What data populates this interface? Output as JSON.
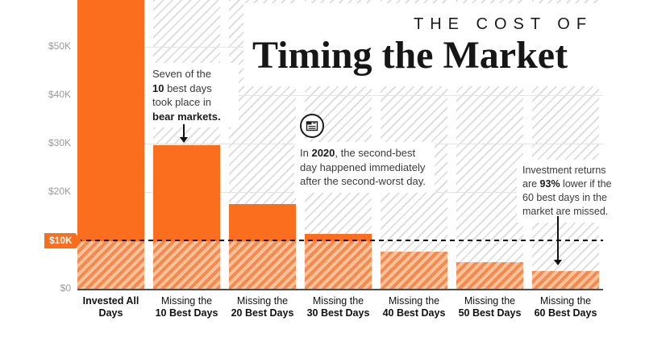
{
  "title": {
    "kicker": "THE COST OF",
    "main": "Timing the Market"
  },
  "colors": {
    "accent_orange": "#FB6E1E",
    "hatch_orange_stripe": "#F58A50",
    "hatch_orange_bg": "#FCC29A",
    "hatch_gray_stripe": "#DFDFDF",
    "axis_label_gray": "#9B9B9B",
    "text_dark": "#1C1C1C"
  },
  "annotations": {
    "bear": {
      "p1": "Seven of the",
      "p2": "10",
      "p3": " best days",
      "p4": "took place in",
      "p5": "bear markets."
    },
    "calendar": {
      "p1": "In ",
      "p2": "2020",
      "p3": ", the second-best",
      "p4": "day happened immediately",
      "p5": "after the second-worst day."
    },
    "returns": {
      "p1": "Investment returns",
      "p2": "are ",
      "p3": "93%",
      "p4": " lower if the",
      "p5": "60 best days in the",
      "p6": "market are missed."
    }
  },
  "chart_data": {
    "type": "bar",
    "title": "The Cost of Timing the Market",
    "categories": [
      {
        "lines": [
          "Invested All Days"
        ],
        "bold_all": true
      },
      {
        "lines": [
          "Missing the",
          "10 Best Days"
        ]
      },
      {
        "lines": [
          "Missing the",
          "20 Best Days"
        ]
      },
      {
        "lines": [
          "Missing the",
          "30 Best Days"
        ]
      },
      {
        "lines": [
          "Missing the",
          "40 Best Days"
        ]
      },
      {
        "lines": [
          "Missing the",
          "50 Best Days"
        ]
      },
      {
        "lines": [
          "Missing the",
          "60 Best Days"
        ]
      }
    ],
    "values": [
      64800,
      29700,
      17500,
      11300,
      7700,
      5500,
      3700
    ],
    "yticks": [
      {
        "value": 0,
        "label": "$0"
      },
      {
        "value": 20000,
        "label": "$20K"
      },
      {
        "value": 30000,
        "label": "$30K"
      },
      {
        "value": 40000,
        "label": "$40K"
      },
      {
        "value": 50000,
        "label": "$50K"
      }
    ],
    "reference_line": {
      "value": 10000,
      "label": "$10K",
      "style": "dashed-black"
    },
    "ylim": [
      0,
      59600
    ],
    "first_bar_clipped_at_top": true,
    "grid": true,
    "legend": "none",
    "bar_color": "#FB6E1E",
    "hatched_below_reference": true
  }
}
